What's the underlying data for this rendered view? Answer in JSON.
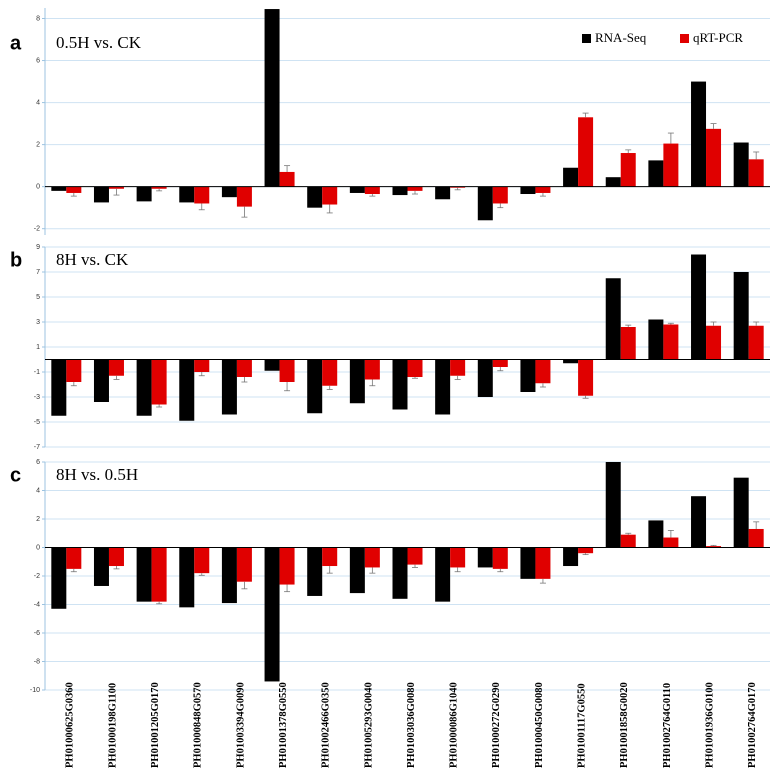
{
  "chart_data": [
    {
      "type": "bar",
      "panel": "a",
      "title": "0.5H vs. CK",
      "ylim": [
        -2.3,
        8.5
      ],
      "yticks": [
        -2,
        0,
        2,
        4,
        6,
        8
      ],
      "grid": true,
      "legend": "top-right",
      "series": [
        {
          "name": "RNA-Seq",
          "color": "#000000",
          "values": [
            -0.2,
            -0.75,
            -0.7,
            -0.75,
            -0.5,
            8.45,
            -1.0,
            -0.3,
            -0.4,
            -0.6,
            -1.6,
            -0.35,
            0.9,
            0.45,
            1.25,
            5.0,
            2.1
          ]
        },
        {
          "name": "qRT-PCR",
          "color": "#e00000",
          "values": [
            -0.3,
            -0.1,
            -0.1,
            -0.8,
            -0.95,
            0.7,
            -0.85,
            -0.35,
            -0.2,
            -0.05,
            -0.8,
            -0.3,
            3.3,
            1.6,
            2.05,
            2.75,
            1.3
          ],
          "errors": [
            0.15,
            0.3,
            0.1,
            0.3,
            0.5,
            0.3,
            0.4,
            0.1,
            0.15,
            0.1,
            0.2,
            0.15,
            0.2,
            0.15,
            0.5,
            0.25,
            0.35
          ]
        }
      ]
    },
    {
      "type": "bar",
      "panel": "b",
      "title": "8H vs. CK",
      "ylim": [
        -7,
        9
      ],
      "yticks": [
        -7,
        -5,
        -3,
        -1,
        1,
        3,
        5,
        7,
        9
      ],
      "grid": true,
      "series": [
        {
          "color": "#000000",
          "values": [
            -4.5,
            -3.4,
            -4.5,
            -4.9,
            -4.4,
            -0.9,
            -4.3,
            -3.5,
            -4.0,
            -4.4,
            -3.0,
            -2.6,
            -0.3,
            6.5,
            3.2,
            8.4,
            7.0
          ]
        },
        {
          "color": "#e00000",
          "values": [
            -1.8,
            -1.3,
            -3.6,
            -1.0,
            -1.4,
            -1.8,
            -2.1,
            -1.6,
            -1.4,
            -1.3,
            -0.6,
            -1.9,
            -2.9,
            2.6,
            2.8,
            2.7,
            2.7
          ],
          "errors": [
            0.3,
            0.3,
            0.2,
            0.3,
            0.4,
            0.7,
            0.3,
            0.5,
            0.1,
            0.3,
            0.3,
            0.3,
            0.2,
            0.15,
            0.1,
            0.3,
            0.3
          ]
        }
      ]
    },
    {
      "type": "bar",
      "panel": "c",
      "title": "8H vs. 0.5H",
      "ylim": [
        -10,
        6
      ],
      "yticks": [
        -10,
        -8,
        -6,
        -4,
        -2,
        0,
        2,
        4,
        6
      ],
      "grid": true,
      "categories": [
        "PH01000625G0360",
        "PH01000198G1100",
        "PH01001205G0170",
        "PH01000848G0570",
        "PH01003394G0090",
        "PH01001378G0550",
        "PH01002466G0350",
        "PH01005293G0040",
        "PH01003036G0080",
        "PH01000086G1040",
        "PH01000272G0290",
        "PH01000450G0080",
        "PH01001117G0550",
        "PH01001858G0020",
        "PH01002764G0110",
        "PH01001936G0100",
        "PH01002764G0170"
      ],
      "series": [
        {
          "color": "#000000",
          "values": [
            -4.3,
            -2.7,
            -3.8,
            -4.2,
            -3.9,
            -9.4,
            -3.4,
            -3.2,
            -3.6,
            -3.8,
            -1.4,
            -2.2,
            -1.3,
            6.0,
            1.9,
            3.6,
            4.9
          ]
        },
        {
          "color": "#e00000",
          "values": [
            -1.5,
            -1.3,
            -3.8,
            -1.8,
            -2.4,
            -2.6,
            -1.3,
            -1.4,
            -1.2,
            -1.4,
            -1.5,
            -2.2,
            -0.4,
            0.9,
            0.7,
            0.1,
            1.3
          ],
          "errors": [
            0.2,
            0.2,
            0.15,
            0.15,
            0.5,
            0.5,
            0.5,
            0.4,
            0.2,
            0.3,
            0.2,
            0.3,
            0.1,
            0.1,
            0.5,
            0.05,
            0.5
          ]
        }
      ]
    }
  ]
}
